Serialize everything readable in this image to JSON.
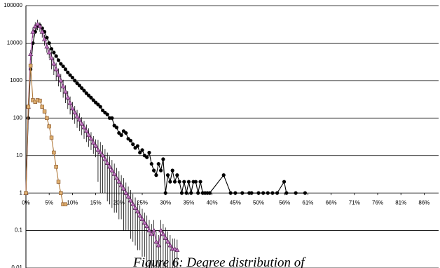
{
  "chart_data": {
    "type": "line",
    "caption": "Figure 6: Degree distribution of",
    "log_y": true,
    "grid": true,
    "x_axis_crosses": 1,
    "xlim": [
      0,
      88.7
    ],
    "ylim": [
      0.01,
      100000
    ],
    "yticks": [
      0.01,
      0.1,
      1,
      10,
      100,
      1000,
      10000,
      100000
    ],
    "xticks": [
      {
        "value": 0,
        "label": "0%"
      },
      {
        "value": 5,
        "label": "5%"
      },
      {
        "value": 10,
        "label": "10%"
      },
      {
        "value": 15,
        "label": "15%"
      },
      {
        "value": 20,
        "label": "20%"
      },
      {
        "value": 25,
        "label": "25%"
      },
      {
        "value": 30,
        "label": "30%"
      },
      {
        "value": 35,
        "label": "35%"
      },
      {
        "value": 40,
        "label": "40%"
      },
      {
        "value": 45,
        "label": "45%"
      },
      {
        "value": 50,
        "label": "50%"
      },
      {
        "value": 55.6,
        "label": "56%"
      },
      {
        "value": 60.6,
        "label": "61%"
      },
      {
        "value": 65.6,
        "label": "66%"
      },
      {
        "value": 70.6,
        "label": "71%"
      },
      {
        "value": 75.6,
        "label": "76%"
      },
      {
        "value": 80.6,
        "label": "81%"
      },
      {
        "value": 85.6,
        "label": "86%"
      }
    ],
    "series": [
      {
        "color": "#000000",
        "marker": "circle",
        "x": [
          0,
          0.5,
          1,
          1.5,
          2,
          2.5,
          3,
          3.5,
          4,
          4.5,
          5,
          5.5,
          6,
          6.5,
          7,
          7.5,
          8,
          8.5,
          9,
          9.5,
          10,
          10.5,
          11,
          11.5,
          12,
          12.5,
          13,
          13.5,
          14,
          14.5,
          15,
          15.5,
          16,
          16.5,
          17,
          17.5,
          18,
          18.5,
          19,
          19.5,
          20,
          20.5,
          21,
          21.5,
          22,
          22.5,
          23,
          23.5,
          24,
          24.5,
          25,
          25.5,
          26,
          26.5,
          27,
          27.5,
          28,
          28.5,
          29,
          29.5,
          30,
          30.5,
          31,
          31.5,
          32,
          32.5,
          33,
          33.5,
          34,
          34.5,
          35,
          35.5,
          36,
          36.5,
          37,
          37.5,
          38,
          38.5,
          39,
          39.5,
          42.5,
          44,
          45,
          46.5,
          48,
          48.5,
          50,
          51,
          52,
          53,
          54,
          55.5,
          56,
          58,
          60
        ],
        "values": [
          1,
          100,
          2000,
          10000,
          20000,
          28000,
          30000,
          25000,
          20000,
          14000,
          10000,
          7000,
          5600,
          4500,
          3500,
          2800,
          2400,
          2000,
          1650,
          1400,
          1200,
          1000,
          850,
          740,
          630,
          540,
          460,
          400,
          350,
          300,
          260,
          230,
          200,
          160,
          140,
          125,
          100,
          100,
          63,
          56,
          40,
          35,
          45,
          40,
          28,
          25,
          20,
          16,
          18,
          12,
          14,
          10,
          9,
          12,
          6,
          4,
          3,
          6,
          4,
          8,
          1,
          3,
          2,
          4,
          2,
          3,
          2,
          1,
          2,
          1,
          2,
          1,
          2,
          2,
          1,
          2,
          1,
          1,
          1,
          1,
          3,
          1,
          1,
          1,
          1,
          1,
          1,
          1,
          1,
          1,
          1,
          2,
          1,
          1,
          1
        ]
      },
      {
        "color": "#a040a0",
        "marker": "triangle",
        "x": [
          0,
          0.5,
          1,
          1.5,
          2,
          2.5,
          3,
          3.5,
          4,
          4.5,
          5,
          5.5,
          6,
          6.5,
          7,
          7.5,
          8,
          8.5,
          9,
          9.5,
          10,
          10.5,
          11,
          11.5,
          12,
          12.5,
          13,
          13.5,
          14,
          14.5,
          15,
          15.5,
          16,
          16.5,
          17,
          17.5,
          18,
          18.5,
          19,
          19.5,
          20,
          20.5,
          21,
          21.5,
          22,
          22.5,
          23,
          23.5,
          24,
          24.5,
          25,
          25.5,
          26,
          26.5,
          27,
          27.5,
          28,
          28.5,
          29,
          29.5,
          30,
          30.5,
          31,
          31.5,
          32,
          32.5
        ],
        "values": [
          1,
          200,
          5000,
          20000,
          28000,
          32000,
          28000,
          20000,
          12600,
          8000,
          5600,
          4000,
          2800,
          2000,
          1400,
          1000,
          700,
          500,
          350,
          250,
          180,
          140,
          110,
          90,
          70,
          56,
          45,
          35,
          28,
          22,
          18,
          14,
          12,
          10,
          8,
          6.3,
          5,
          4,
          3.2,
          2.5,
          2,
          1.6,
          1.3,
          1,
          0.8,
          0.63,
          0.5,
          0.4,
          0.32,
          0.25,
          0.2,
          0.16,
          0.13,
          0.1,
          0.08,
          0.1,
          0.05,
          0.04,
          0.1,
          0.08,
          0.063,
          0.05,
          0.04,
          0.032,
          0.032,
          0.03
        ],
        "errors": [
          0,
          60,
          1500,
          6000,
          8000,
          10000,
          8000,
          6000,
          4000,
          2400,
          1700,
          2000,
          1400,
          1000,
          700,
          500,
          350,
          250,
          175,
          125,
          90,
          70,
          55,
          45,
          35,
          28,
          22,
          18,
          14,
          11,
          9,
          12,
          11,
          9,
          7,
          5.7,
          4.5,
          3.6,
          2.9,
          2.2,
          1.8,
          1.4,
          1.2,
          0.9,
          0.7,
          0.57,
          0.45,
          0.36,
          0.29,
          0.22,
          0.18,
          0.14,
          0.12,
          0.09,
          0.07,
          0.09,
          0.045,
          0.036,
          0.09,
          0.07,
          0.057,
          0.045,
          0.036,
          0.029,
          0.029,
          0.027
        ]
      },
      {
        "color": "#b07838",
        "marker": "square",
        "x": [
          0,
          0.5,
          1,
          1.5,
          2,
          2.5,
          3,
          3.5,
          4,
          4.5,
          5,
          5.5,
          6,
          6.5,
          7,
          7.5,
          8,
          8.5
        ],
        "values": [
          1,
          200,
          2500,
          300,
          270,
          300,
          290,
          200,
          150,
          100,
          60,
          30,
          12,
          5,
          2,
          1,
          0.5,
          0.5
        ]
      }
    ]
  }
}
